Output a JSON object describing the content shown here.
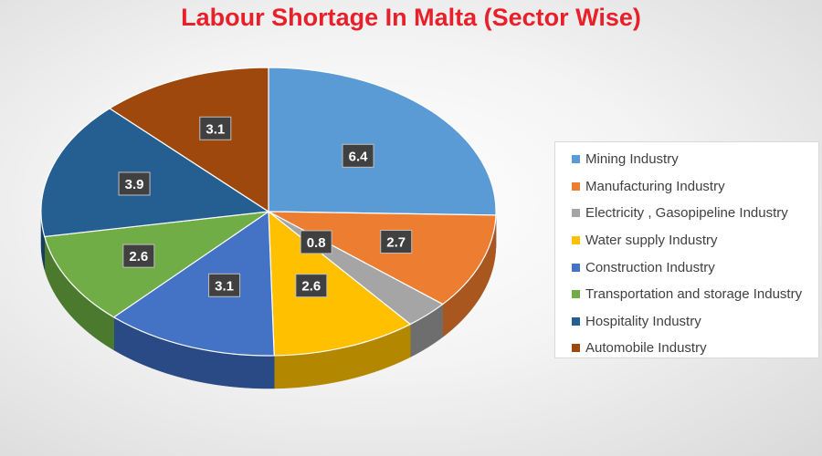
{
  "colors": {
    "title": "#e8202a",
    "label_bg": "#404040",
    "label_text": "#ffffff"
  },
  "chart_data": {
    "type": "pie",
    "title": "Labour Shortage In Malta (Sector Wise)",
    "slices": [
      {
        "label": "Mining Industry",
        "value": 6.4,
        "color": "#5b9bd5",
        "side": "#3d6f9e"
      },
      {
        "label": "Manufacturing Industry",
        "value": 2.7,
        "color": "#ed7d31",
        "side": "#a9561f"
      },
      {
        "label": "Electricity , Gasopipeline Industry",
        "value": 0.8,
        "color": "#a5a5a5",
        "side": "#6e6e6e"
      },
      {
        "label": "Water supply Industry",
        "value": 2.6,
        "color": "#ffc000",
        "side": "#b38700"
      },
      {
        "label": "Construction Industry",
        "value": 3.1,
        "color": "#4472c4",
        "side": "#2a4a85"
      },
      {
        "label": "Transportation and storage Industry",
        "value": 2.6,
        "color": "#70ad47",
        "side": "#4b7a2e"
      },
      {
        "label": "Hospitality Industry",
        "value": 3.9,
        "color": "#255e91",
        "side": "#173d60"
      },
      {
        "label": "Automobile Industry",
        "value": 3.1,
        "color": "#9e480e",
        "side": "#6a2f08"
      }
    ],
    "legend_position": "right",
    "data_labels": true
  }
}
